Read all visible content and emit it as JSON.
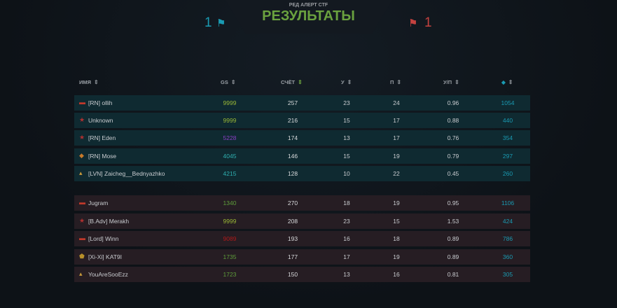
{
  "header": {
    "subtitle": "РЕД АЛЕРТ CTF",
    "title": "РЕЗУЛЬТАТЫ",
    "blue_score": "1",
    "red_score": "1",
    "blue_color": "#1a9bb3",
    "red_color": "#c4423f"
  },
  "columns": {
    "name": "ИМЯ",
    "gs": "GS",
    "score": "СЧЁТ",
    "kills": "У",
    "deaths": "П",
    "kd": "У/П",
    "crystals_icon": "gem-icon"
  },
  "blue_team": [
    {
      "name": "[RN] ollih",
      "gs": "9999",
      "gs_color": "#9ab836",
      "score": "257",
      "kills": "23",
      "deaths": "24",
      "kd": "0.96",
      "crystals": "1054",
      "rank_icon": "rank-tank-icon"
    },
    {
      "name": "Unknown",
      "gs": "9999",
      "gs_color": "#9ab836",
      "score": "216",
      "kills": "15",
      "deaths": "17",
      "kd": "0.88",
      "crystals": "440",
      "rank_icon": "rank-star-icon"
    },
    {
      "name": "[RN] Eden",
      "gs": "5228",
      "gs_color": "#8a3fc4",
      "score": "174",
      "kills": "13",
      "deaths": "17",
      "kd": "0.76",
      "crystals": "354",
      "rank_icon": "rank-star-icon"
    },
    {
      "name": "[RN] Mose",
      "gs": "4045",
      "gs_color": "#2fb0b0",
      "score": "146",
      "kills": "15",
      "deaths": "19",
      "kd": "0.79",
      "crystals": "297",
      "rank_icon": "rank-diamond-icon"
    },
    {
      "name": "[LVN] Zaicheg__Bednyazhko",
      "gs": "4215",
      "gs_color": "#2fb0b0",
      "score": "128",
      "kills": "10",
      "deaths": "22",
      "kd": "0.45",
      "crystals": "260",
      "rank_icon": "rank-chevrons-icon"
    }
  ],
  "red_team": [
    {
      "name": "Jugram",
      "gs": "1340",
      "gs_color": "#5e9e3a",
      "score": "270",
      "kills": "18",
      "deaths": "19",
      "kd": "0.95",
      "crystals": "1106",
      "rank_icon": "rank-tank-icon"
    },
    {
      "name": "[B.Adv] Merakh",
      "gs": "9999",
      "gs_color": "#9ab836",
      "score": "208",
      "kills": "23",
      "deaths": "15",
      "kd": "1.53",
      "crystals": "424",
      "rank_icon": "rank-star-icon"
    },
    {
      "name": "[Lord] Winn",
      "gs": "9089",
      "gs_color": "#b01a1a",
      "score": "193",
      "kills": "16",
      "deaths": "18",
      "kd": "0.89",
      "crystals": "786",
      "rank_icon": "rank-tank-icon"
    },
    {
      "name": "[Xi-Xi] KAT9I",
      "gs": "1735",
      "gs_color": "#5e9e3a",
      "score": "177",
      "kills": "17",
      "deaths": "19",
      "kd": "0.89",
      "crystals": "360",
      "rank_icon": "rank-shield-icon"
    },
    {
      "name": "YouAreSooEzz",
      "gs": "1723",
      "gs_color": "#5e9e3a",
      "score": "150",
      "kills": "13",
      "deaths": "16",
      "kd": "0.81",
      "crystals": "305",
      "rank_icon": "rank-chevrons-icon"
    }
  ]
}
